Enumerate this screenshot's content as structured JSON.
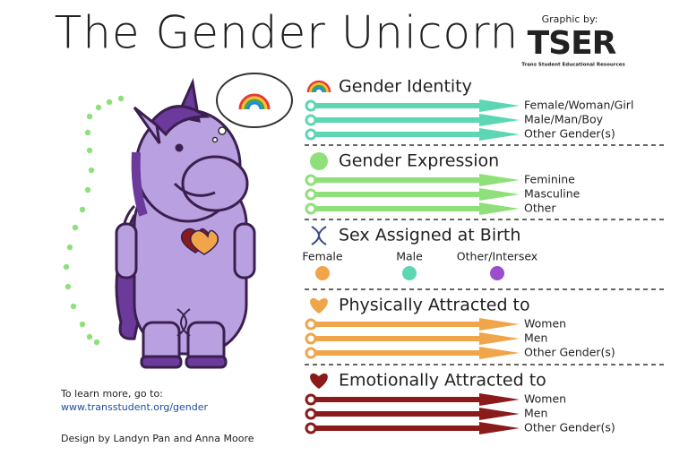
{
  "header": {
    "title": "The Gender Unicorn",
    "credit_label": "Graphic by:",
    "credit_name": "TSER",
    "credit_full": "Trans Student Educational Resources"
  },
  "sections": [
    {
      "title": "Gender Identity",
      "items": [
        "Female/Woman/Girl",
        "Male/Man/Boy",
        "Other Gender(s)"
      ]
    },
    {
      "title": "Gender Expression",
      "items": [
        "Feminine",
        "Masculine",
        "Other"
      ]
    },
    {
      "title": "Sex Assigned at Birth",
      "options": [
        "Female",
        "Male",
        "Other/Intersex"
      ]
    },
    {
      "title": "Physically Attracted to",
      "items": [
        "Women",
        "Men",
        "Other Gender(s)"
      ]
    },
    {
      "title": "Emotionally Attracted to",
      "items": [
        "Women",
        "Men",
        "Other Gender(s)"
      ]
    }
  ],
  "footer": {
    "learn_more": "To learn more, go to:",
    "url": "www.transstudent.org/gender",
    "design": "Design by Landyn Pan and Anna Moore"
  }
}
